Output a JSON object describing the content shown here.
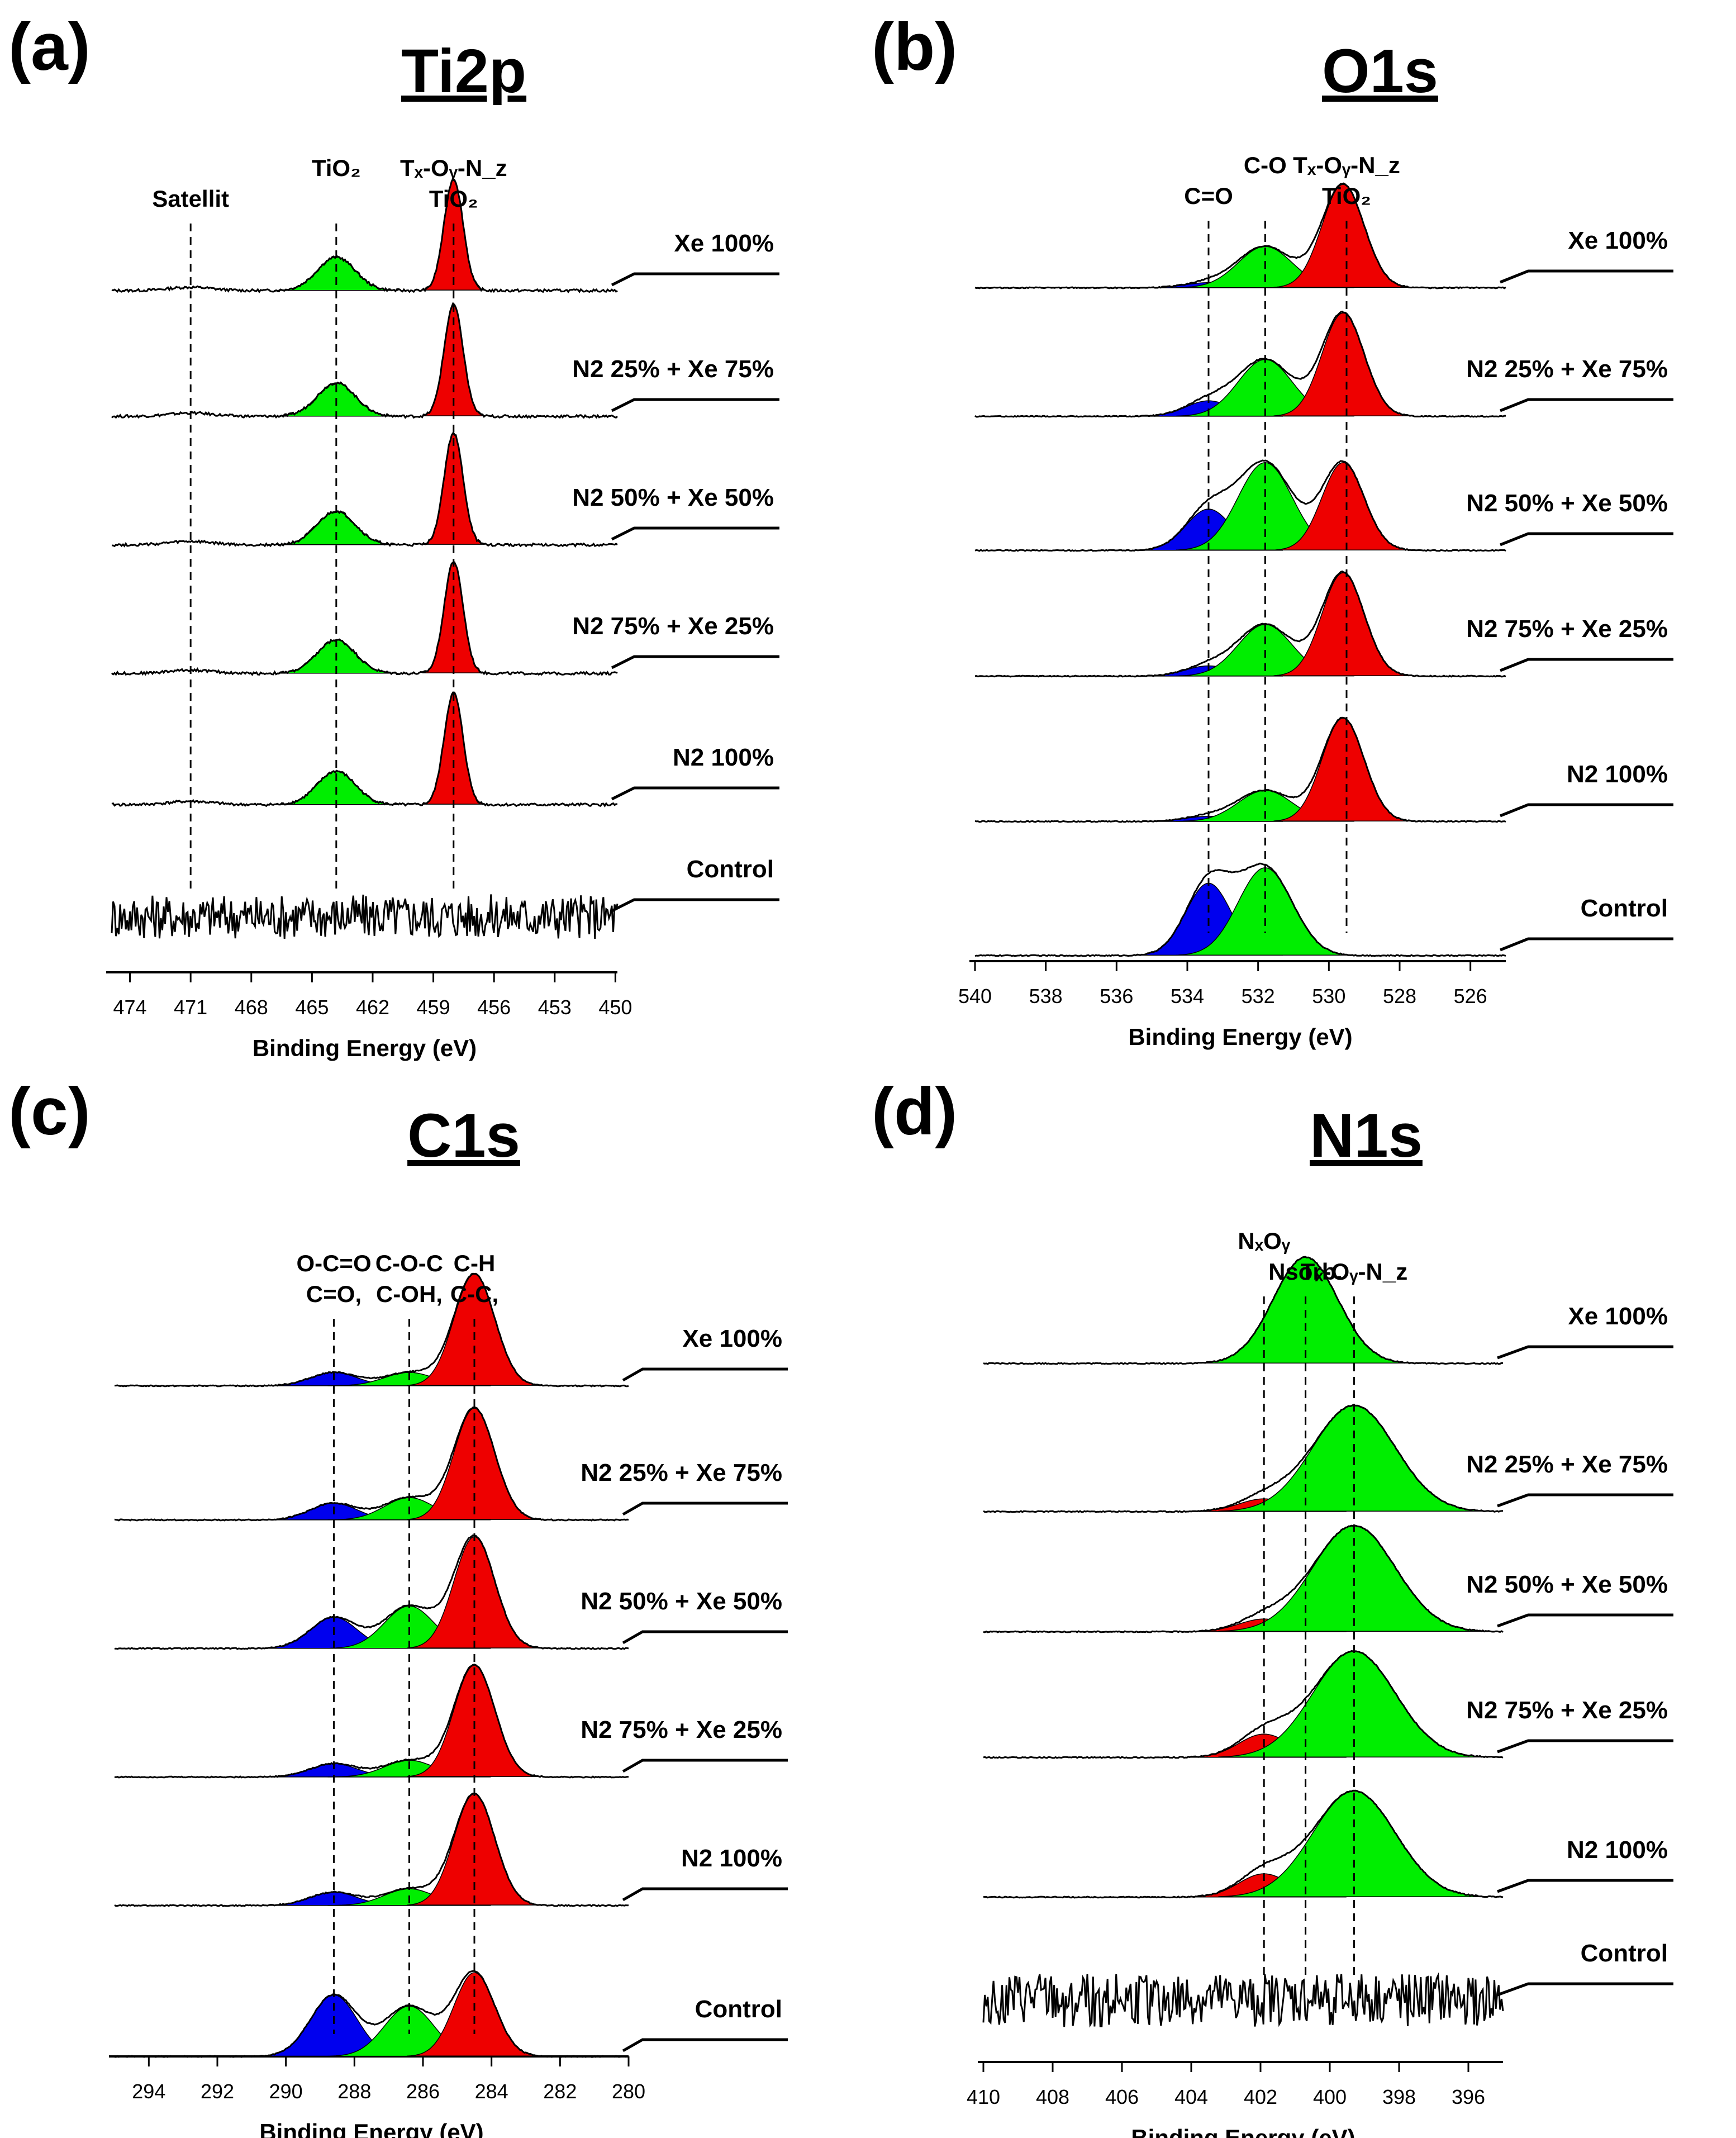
{
  "figure": {
    "xlabel": "Binding Energy (eV)",
    "series_labels": [
      "Xe 100%",
      "N2 25% + Xe 75%",
      "N2 50% + Xe 50%",
      "N2 75% + Xe 25%",
      "N2 100%",
      "Control"
    ]
  },
  "colors": {
    "green": "#00ee00",
    "red": "#ee0000",
    "blue": "#0000ee",
    "line": "#000000"
  },
  "chart_data": [
    {
      "panel": "(a)",
      "title": "Ti2p",
      "type": "line",
      "xlabel": "Binding Energy (eV)",
      "xlim": [
        474.9,
        449.9
      ],
      "ticks": [
        474,
        471,
        468,
        465,
        462,
        459,
        456,
        453,
        450
      ],
      "series": [
        {
          "name": "Xe 100%",
          "amp": 1.0,
          "noise": 0.012
        },
        {
          "name": "N2 25% + Xe 75%",
          "amp": 1.0,
          "noise": 0.012
        },
        {
          "name": "N2 50% + Xe 50%",
          "amp": 1.0,
          "noise": 0.012
        },
        {
          "name": "N2 75% + Xe 25%",
          "amp": 1.0,
          "noise": 0.012
        },
        {
          "name": "N2 100%",
          "amp": 1.0,
          "noise": 0.012
        },
        {
          "name": "Control",
          "amp": 0.0,
          "noise": 0.2
        }
      ],
      "components": [
        {
          "label": "TiO2",
          "center": 463.8,
          "fwhm": 2.2,
          "height": 0.3,
          "color": "green"
        },
        {
          "label": "TiO2 / Tx-Oy-Nz",
          "center": 458.0,
          "fwhm": 1.1,
          "height": 1.0,
          "color": "red"
        },
        {
          "label": "Satellit",
          "center": 471.0,
          "fwhm": 2.5,
          "height": 0.03,
          "color": "none"
        }
      ],
      "annotations": [
        {
          "text": "Satellit",
          "x": 471.0
        },
        {
          "text": "TiO₂",
          "x": 463.8
        },
        {
          "text": "TiO₂",
          "x": 458.0
        },
        {
          "text": "Tₓ-Oᵧ-N_z",
          "x": 458.0
        }
      ]
    },
    {
      "panel": "(b)",
      "title": "O1s",
      "type": "line",
      "xlabel": "Binding Energy (eV)",
      "xlim": [
        540.0,
        525.0
      ],
      "ticks": [
        540,
        538,
        536,
        534,
        532,
        530,
        528,
        526
      ],
      "series": [
        {
          "name": "Xe 100%",
          "components": [
            0.05,
            0.4,
            1.0
          ]
        },
        {
          "name": "N2 25% + Xe 75%",
          "components": [
            0.15,
            0.55,
            1.0
          ]
        },
        {
          "name": "N2 50% + Xe 50%",
          "components": [
            0.4,
            0.85,
            0.85
          ]
        },
        {
          "name": "N2 75% + Xe 25%",
          "components": [
            0.1,
            0.5,
            1.0
          ]
        },
        {
          "name": "N2 100%",
          "components": [
            0.05,
            0.3,
            1.0
          ]
        },
        {
          "name": "Control",
          "components": [
            0.7,
            0.85,
            0.0
          ]
        }
      ],
      "components": [
        {
          "label": "C=O",
          "center": 533.4,
          "fwhm": 1.5,
          "color": "blue"
        },
        {
          "label": "C-O",
          "center": 531.8,
          "fwhm": 1.8,
          "color": "green"
        },
        {
          "label": "TiO2 / Tx-Oy-Nz",
          "center": 529.6,
          "fwhm": 1.4,
          "color": "red"
        }
      ],
      "annotations": [
        {
          "text": "C=O",
          "x": 533.4
        },
        {
          "text": "C-O",
          "x": 531.8
        },
        {
          "text": "TiO₂",
          "x": 529.5
        },
        {
          "text": "Tₓ-Oᵧ-N_z",
          "x": 529.5
        }
      ]
    },
    {
      "panel": "(c)",
      "title": "C1s",
      "type": "line",
      "xlabel": "Binding Energy (eV)",
      "xlim": [
        295.0,
        280.0
      ],
      "ticks": [
        294,
        292,
        290,
        288,
        286,
        284,
        282,
        280
      ],
      "series": [
        {
          "name": "Xe 100%",
          "components": [
            0.12,
            0.12,
            1.0
          ]
        },
        {
          "name": "N2 25% + Xe 75%",
          "components": [
            0.15,
            0.2,
            1.0
          ]
        },
        {
          "name": "N2 50% + Xe 50%",
          "components": [
            0.28,
            0.38,
            1.0
          ]
        },
        {
          "name": "N2 75% + Xe 25%",
          "components": [
            0.12,
            0.15,
            1.0
          ]
        },
        {
          "name": "N2 100%",
          "components": [
            0.12,
            0.15,
            1.0
          ]
        },
        {
          "name": "Control",
          "components": [
            0.55,
            0.45,
            0.75
          ]
        }
      ],
      "components": [
        {
          "label": "C=O, O-C=O",
          "center": 288.6,
          "fwhm": 1.6,
          "color": "blue"
        },
        {
          "label": "C-OH, C-O-C",
          "center": 286.4,
          "fwhm": 1.7,
          "color": "green"
        },
        {
          "label": "C-C, C-H",
          "center": 284.5,
          "fwhm": 1.4,
          "color": "red"
        }
      ],
      "annotations": [
        {
          "text": "C=O,",
          "x": 288.6
        },
        {
          "text": "O-C=O",
          "x": 288.6
        },
        {
          "text": "C-OH,",
          "x": 286.4
        },
        {
          "text": "C-O-C",
          "x": 286.4
        },
        {
          "text": "C-C,",
          "x": 284.5
        },
        {
          "text": "C-H",
          "x": 284.5
        }
      ]
    },
    {
      "panel": "(d)",
      "title": "N1s",
      "type": "line",
      "xlabel": "Binding Energy (eV)",
      "xlim": [
        410.0,
        395.0
      ],
      "ticks": [
        410,
        408,
        406,
        404,
        402,
        400,
        398,
        396
      ],
      "series": [
        {
          "name": "Xe 100%",
          "components": [
            0.0,
            0.0,
            1.0
          ]
        },
        {
          "name": "N2 25% + Xe 75%",
          "components": [
            0.12,
            1.0,
            0.0
          ]
        },
        {
          "name": "N2 50% + Xe 50%",
          "components": [
            0.12,
            1.0,
            0.0
          ]
        },
        {
          "name": "N2 75% + Xe 25%",
          "components": [
            0.22,
            1.0,
            0.0
          ]
        },
        {
          "name": "N2 100%",
          "components": [
            0.22,
            1.0,
            0.0
          ]
        },
        {
          "name": "Control",
          "components": [
            0.0,
            0.0,
            0.0
          ],
          "noise": 0.25
        }
      ],
      "components": [
        {
          "label": "NxOy",
          "center": 401.9,
          "fwhm": 1.7,
          "color": "red"
        },
        {
          "label": "Tx-Oy-Nz",
          "center": 399.3,
          "fwhm": 2.8,
          "color": "green"
        },
        {
          "label": "N sorb.",
          "center": 400.7,
          "fwhm": 2.2,
          "color": "green"
        }
      ],
      "annotations": [
        {
          "text": "Nsorb.",
          "x": 400.7
        },
        {
          "text": "NₓOᵧ",
          "x": 401.9
        },
        {
          "text": "Tₓ-Oᵧ-N_z",
          "x": 399.3
        }
      ]
    }
  ]
}
